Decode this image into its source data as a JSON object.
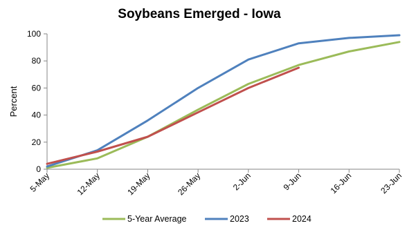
{
  "chart_data": {
    "type": "line",
    "title": "Soybeans Emerged - Iowa",
    "xlabel": "",
    "ylabel": "Percent",
    "categories": [
      "5-May",
      "12-May",
      "19-May",
      "26-May",
      "2-Jun",
      "9-Jun",
      "16-Jun",
      "23-Jun"
    ],
    "ylim": [
      0,
      100
    ],
    "yticks": [
      0,
      20,
      40,
      60,
      80,
      100
    ],
    "grid": false,
    "legend_position": "bottom",
    "series": [
      {
        "name": "5-Year Average",
        "color": "#9bbb59",
        "values": [
          1,
          8,
          24,
          44,
          63,
          77,
          87,
          94
        ]
      },
      {
        "name": "2023",
        "color": "#4f81bd",
        "values": [
          2,
          14,
          36,
          60,
          81,
          93,
          97,
          99
        ]
      },
      {
        "name": "2024",
        "color": "#c0504d",
        "values": [
          4,
          13,
          24,
          42,
          60,
          75,
          null,
          null
        ]
      }
    ]
  }
}
